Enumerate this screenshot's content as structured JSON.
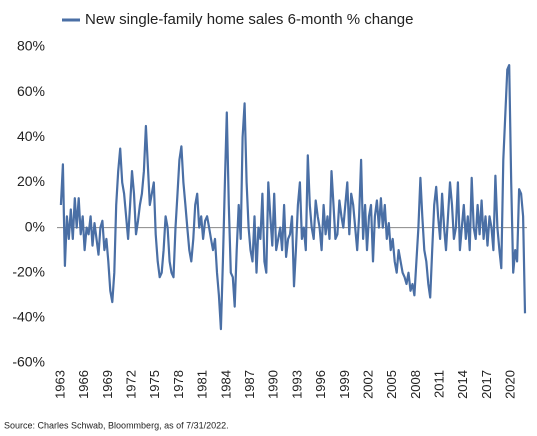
{
  "chart_data": {
    "type": "line",
    "source": "Source: Charles Schwab, Bloommberg, as of 7/31/2022.",
    "legend": "upper left",
    "series": [
      {
        "name": "New single-family home sales 6-month % change",
        "color": "#4a6fa5",
        "x": [
          1963,
          1963.25,
          1963.5,
          1963.75,
          1964,
          1964.25,
          1964.5,
          1964.75,
          1965,
          1965.25,
          1965.5,
          1965.75,
          1966,
          1966.25,
          1966.5,
          1966.75,
          1967,
          1967.25,
          1967.5,
          1967.75,
          1968,
          1968.25,
          1968.5,
          1968.75,
          1969,
          1969.25,
          1969.5,
          1969.75,
          1970,
          1970.25,
          1970.5,
          1970.75,
          1971,
          1971.25,
          1971.5,
          1971.75,
          1972,
          1972.25,
          1972.5,
          1972.75,
          1973,
          1973.25,
          1973.5,
          1973.75,
          1974,
          1974.25,
          1974.5,
          1974.75,
          1975,
          1975.25,
          1975.5,
          1975.75,
          1976,
          1976.25,
          1976.5,
          1976.75,
          1977,
          1977.25,
          1977.5,
          1977.75,
          1978,
          1978.25,
          1978.5,
          1978.75,
          1979,
          1979.25,
          1979.5,
          1979.75,
          1980,
          1980.25,
          1980.5,
          1980.75,
          1981,
          1981.25,
          1981.5,
          1981.75,
          1982,
          1982.25,
          1982.5,
          1982.75,
          1983,
          1983.25,
          1983.5,
          1983.75,
          1984,
          1984.25,
          1984.5,
          1984.75,
          1985,
          1985.25,
          1985.5,
          1985.75,
          1986,
          1986.25,
          1986.5,
          1986.75,
          1987,
          1987.25,
          1987.5,
          1987.75,
          1988,
          1988.25,
          1988.5,
          1988.75,
          1989,
          1989.25,
          1989.5,
          1989.75,
          1990,
          1990.25,
          1990.5,
          1990.75,
          1991,
          1991.25,
          1991.5,
          1991.75,
          1992,
          1992.25,
          1992.5,
          1992.75,
          1993,
          1993.25,
          1993.5,
          1993.75,
          1994,
          1994.25,
          1994.5,
          1994.75,
          1995,
          1995.25,
          1995.5,
          1995.75,
          1996,
          1996.25,
          1996.5,
          1996.75,
          1997,
          1997.25,
          1997.5,
          1997.75,
          1998,
          1998.25,
          1998.5,
          1998.75,
          1999,
          1999.25,
          1999.5,
          1999.75,
          2000,
          2000.25,
          2000.5,
          2000.75,
          2001,
          2001.25,
          2001.5,
          2001.75,
          2002,
          2002.25,
          2002.5,
          2002.75,
          2003,
          2003.25,
          2003.5,
          2003.75,
          2004,
          2004.25,
          2004.5,
          2004.75,
          2005,
          2005.25,
          2005.5,
          2005.75,
          2006,
          2006.25,
          2006.5,
          2006.75,
          2007,
          2007.25,
          2007.5,
          2007.75,
          2008,
          2008.25,
          2008.5,
          2008.75,
          2009,
          2009.25,
          2009.5,
          2009.75,
          2010,
          2010.25,
          2010.5,
          2010.75,
          2011,
          2011.25,
          2011.5,
          2011.75,
          2012,
          2012.25,
          2012.5,
          2012.75,
          2013,
          2013.25,
          2013.5,
          2013.75,
          2014,
          2014.25,
          2014.5,
          2014.75,
          2015,
          2015.25,
          2015.5,
          2015.75,
          2016,
          2016.25,
          2016.5,
          2016.75,
          2017,
          2017.25,
          2017.5,
          2017.75,
          2018,
          2018.25,
          2018.5,
          2018.75,
          2019,
          2019.25,
          2019.5,
          2019.75,
          2020,
          2020.25,
          2020.5,
          2020.75,
          2021,
          2021.25,
          2021.5,
          2021.75
        ],
        "values": [
          10,
          28,
          -17,
          5,
          -5,
          8,
          -5,
          13,
          0,
          13,
          -3,
          5,
          -10,
          0,
          -3,
          5,
          -8,
          2,
          -5,
          -12,
          0,
          3,
          -10,
          -5,
          -15,
          -28,
          -33,
          -20,
          10,
          25,
          35,
          20,
          15,
          5,
          -5,
          10,
          25,
          15,
          -3,
          3,
          10,
          15,
          25,
          45,
          28,
          10,
          15,
          20,
          -3,
          -15,
          -22,
          -20,
          -10,
          5,
          0,
          -15,
          -20,
          -22,
          0,
          15,
          30,
          36,
          20,
          10,
          0,
          -10,
          -15,
          -5,
          10,
          15,
          0,
          5,
          -5,
          3,
          5,
          0,
          -5,
          -10,
          -5,
          -20,
          -30,
          -45,
          -15,
          20,
          51,
          10,
          -20,
          -22,
          -35,
          -10,
          10,
          -5,
          40,
          55,
          20,
          0,
          -10,
          -15,
          5,
          -20,
          0,
          -5,
          15,
          -15,
          -20,
          20,
          5,
          -8,
          15,
          -10,
          -5,
          0,
          -10,
          10,
          -13,
          -5,
          -3,
          5,
          -26,
          -10,
          10,
          20,
          -5,
          0,
          -10,
          32,
          10,
          0,
          -5,
          12,
          5,
          0,
          -10,
          10,
          -3,
          5,
          -5,
          25,
          10,
          -5,
          -3,
          12,
          5,
          0,
          10,
          20,
          -3,
          15,
          10,
          0,
          -10,
          5,
          30,
          -5,
          10,
          -10,
          5,
          10,
          -15,
          5,
          12,
          0,
          13,
          0,
          10,
          -5,
          2,
          -10,
          -5,
          -15,
          -20,
          -10,
          -15,
          -20,
          -22,
          -25,
          -20,
          -28,
          -25,
          -30,
          -15,
          0,
          22,
          5,
          -10,
          -15,
          -25,
          -31,
          -10,
          10,
          18,
          5,
          -5,
          15,
          0,
          -10,
          5,
          20,
          10,
          -5,
          0,
          20,
          -10,
          0,
          10,
          -5,
          5,
          -10,
          22,
          0,
          -5,
          10,
          -3,
          12,
          -5,
          5,
          -8,
          5,
          0,
          -10,
          23,
          0,
          -10,
          -18,
          30,
          50,
          70,
          72,
          20,
          -20,
          -10,
          -15,
          17,
          15,
          5,
          -38
        ]
      }
    ],
    "xlim": [
      1962.5,
      2022
    ],
    "xticks": [
      1963,
      1966,
      1969,
      1972,
      1975,
      1978,
      1981,
      1984,
      1987,
      1990,
      1993,
      1996,
      1999,
      2002,
      2005,
      2008,
      2011,
      2014,
      2017,
      2020
    ],
    "ylim": [
      -60,
      80
    ],
    "yticks": [
      {
        "value": -60,
        "label": "-60%"
      },
      {
        "value": -40,
        "label": "-40%"
      },
      {
        "value": -20,
        "label": "-20%"
      },
      {
        "value": 0,
        "label": "0%"
      },
      {
        "value": 20,
        "label": "20%"
      },
      {
        "value": 40,
        "label": "40%"
      },
      {
        "value": 60,
        "label": "60%"
      },
      {
        "value": 80,
        "label": "80%"
      }
    ]
  }
}
